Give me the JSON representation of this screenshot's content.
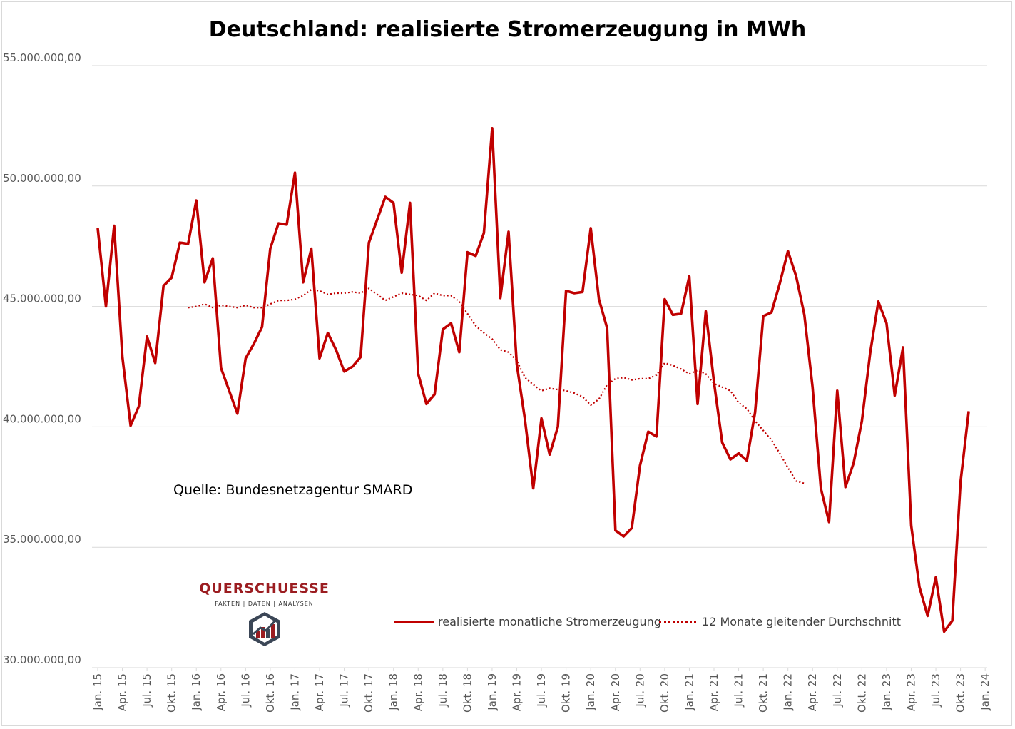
{
  "chart_data": {
    "type": "line",
    "title": "Deutschland: realisierte Stromerzeugung in MWh",
    "xlabel": "",
    "ylabel": "",
    "ylim": [
      30000000,
      55000000
    ],
    "y_ticks": [
      30000000,
      35000000,
      40000000,
      45000000,
      50000000,
      55000000
    ],
    "y_tick_labels": [
      "30.000.000,00",
      "35.000.000,00",
      "40.000.000,00",
      "45.000.000,00",
      "50.000.000,00",
      "55.000.000,00"
    ],
    "x_tick_labels": [
      "Jan. 15",
      "Apr. 15",
      "Jul. 15",
      "Okt. 15",
      "Jan. 16",
      "Apr. 16",
      "Jul. 16",
      "Okt. 16",
      "Jan. 17",
      "Apr. 17",
      "Jul. 17",
      "Okt. 17",
      "Jan. 18",
      "Apr. 18",
      "Jul. 18",
      "Okt. 18",
      "Jan. 19",
      "Apr. 19",
      "Jul. 19",
      "Okt. 19",
      "Jan. 20",
      "Apr. 20",
      "Jul. 20",
      "Okt. 20",
      "Jan. 21",
      "Apr. 21",
      "Jul. 21",
      "Okt. 21",
      "Jan. 22",
      "Apr. 22",
      "Jul. 22",
      "Okt. 22",
      "Jan. 23",
      "Apr. 23",
      "Jul. 23",
      "Okt. 23",
      "Jan. 24"
    ],
    "grid": true,
    "legend_position": "bottom-right",
    "series": [
      {
        "name": "realisierte monatliche Stromerzeugung",
        "style": "solid",
        "color": "#c00000",
        "values": [
          48250000,
          45000000,
          48350000,
          42900000,
          40050000,
          40850000,
          43750000,
          42650000,
          45850000,
          46200000,
          47650000,
          47600000,
          49400000,
          46000000,
          47000000,
          42450000,
          41500000,
          40550000,
          42850000,
          43450000,
          44150000,
          47400000,
          48450000,
          48400000,
          50550000,
          46000000,
          47400000,
          42850000,
          43900000,
          43200000,
          42300000,
          42500000,
          42900000,
          47650000,
          48600000,
          49550000,
          49300000,
          46400000,
          49300000,
          42200000,
          40950000,
          41350000,
          44050000,
          44300000,
          43100000,
          47250000,
          47100000,
          48050000,
          52400000,
          45350000,
          48100000,
          42600000,
          40300000,
          37450000,
          40350000,
          38850000,
          40000000,
          45650000,
          45550000,
          45600000,
          48250000,
          45300000,
          44100000,
          35700000,
          35450000,
          35800000,
          38400000,
          39800000,
          39600000,
          45300000,
          44650000,
          44700000,
          46250000,
          40950000,
          44800000,
          41850000,
          39350000,
          38650000,
          38900000,
          38600000,
          40600000,
          44600000,
          44750000,
          45950000,
          47300000,
          46250000,
          44650000,
          41650000,
          37450000,
          36050000,
          41500000,
          37500000,
          38500000,
          40250000,
          43050000,
          45200000,
          44300000,
          41300000,
          43300000,
          35900000,
          33350000,
          32150000,
          33750000,
          31500000,
          31950000,
          37700000,
          40650000
        ]
      },
      {
        "name": "12 Monate gleitender Durchschnitt",
        "style": "dotted",
        "color": "#c00000",
        "start_index": 11,
        "values": [
          44950000,
          45000000,
          45100000,
          44950000,
          45050000,
          45000000,
          44950000,
          45050000,
          44950000,
          44950000,
          45100000,
          45250000,
          45250000,
          45300000,
          45450000,
          45700000,
          45650000,
          45500000,
          45550000,
          45550000,
          45600000,
          45550000,
          45750000,
          45500000,
          45250000,
          45400000,
          45550000,
          45500000,
          45450000,
          45250000,
          45550000,
          45450000,
          45450000,
          45200000,
          44700000,
          44200000,
          43900000,
          43650000,
          43200000,
          43100000,
          42750000,
          42050000,
          41750000,
          41500000,
          41600000,
          41550000,
          41500000,
          41400000,
          41250000,
          40900000,
          41150000,
          41750000,
          42000000,
          42050000,
          41950000,
          42000000,
          42000000,
          42150000,
          42650000,
          42550000,
          42400000,
          42200000,
          42350000,
          42200000,
          41800000,
          41650000,
          41500000,
          41000000,
          40750000,
          40250000,
          39850000,
          39450000,
          38900000,
          38300000,
          37750000,
          37650000
        ]
      }
    ],
    "annotations": [
      "Quelle: Bundesnetzagentur SMARD"
    ]
  },
  "source_label": "Quelle: Bundesnetzagentur SMARD",
  "logo": {
    "name": "QUERSCHUESSE",
    "tagline": "FAKTEN | DATEN | ANALYSEN"
  },
  "colors": {
    "line": "#c00000",
    "grid": "#d9d9d9",
    "axis_text": "#595959",
    "logo": "#9b1c20"
  }
}
